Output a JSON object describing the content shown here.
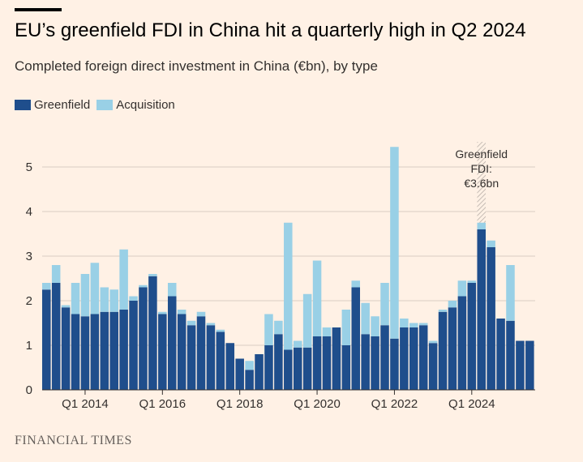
{
  "title": "EU’s greenfield FDI in China hit a quarterly high in Q2 2024",
  "subtitle": "Completed foreign direct investment in China (€bn), by type",
  "source": "FINANCIAL TIMES",
  "chart_data": {
    "type": "bar",
    "stacked": true,
    "grid": true,
    "legend_position": "top-left",
    "ylim": [
      0,
      5.6
    ],
    "yticks": [
      0,
      1,
      2,
      3,
      4,
      5
    ],
    "xtick_labels": [
      {
        "label": "Q1 2014",
        "index": 4
      },
      {
        "label": "Q1 2016",
        "index": 12
      },
      {
        "label": "Q1 2018",
        "index": 20
      },
      {
        "label": "Q1 2020",
        "index": 28
      },
      {
        "label": "Q1 2022",
        "index": 36
      },
      {
        "label": "Q1 2024",
        "index": 44
      }
    ],
    "categories": [
      "Q1 2013",
      "Q2 2013",
      "Q3 2013",
      "Q4 2013",
      "Q1 2014",
      "Q2 2014",
      "Q3 2014",
      "Q4 2014",
      "Q1 2015",
      "Q2 2015",
      "Q3 2015",
      "Q4 2015",
      "Q1 2016",
      "Q2 2016",
      "Q3 2016",
      "Q4 2016",
      "Q1 2017",
      "Q2 2017",
      "Q3 2017",
      "Q4 2017",
      "Q1 2018",
      "Q2 2018",
      "Q3 2018",
      "Q4 2018",
      "Q1 2019",
      "Q2 2019",
      "Q3 2019",
      "Q4 2019",
      "Q1 2020",
      "Q2 2020",
      "Q3 2020",
      "Q4 2020",
      "Q1 2021",
      "Q2 2021",
      "Q3 2021",
      "Q4 2021",
      "Q1 2022",
      "Q2 2022",
      "Q3 2022",
      "Q4 2022",
      "Q1 2023",
      "Q2 2023",
      "Q3 2023",
      "Q4 2023",
      "Q1 2024",
      "Q2 2024",
      "Q3 2024",
      "Q4 2024",
      "Q1 2025",
      "Q2 2025"
    ],
    "series": [
      {
        "name": "Greenfield",
        "color": "#1f4e8c",
        "values": [
          2.25,
          2.4,
          1.85,
          1.7,
          1.65,
          1.7,
          1.75,
          1.75,
          1.8,
          2.0,
          2.3,
          2.55,
          1.7,
          2.1,
          1.7,
          1.45,
          1.65,
          1.45,
          1.3,
          1.05,
          0.7,
          0.45,
          0.8,
          1.0,
          1.25,
          0.9,
          0.95,
          0.95,
          1.2,
          1.2,
          1.4,
          1.0,
          2.3,
          1.25,
          1.2,
          1.45,
          1.15,
          1.4,
          1.4,
          1.45,
          1.05,
          1.75,
          1.85,
          2.1,
          2.4,
          3.6,
          3.2,
          1.6,
          1.55,
          1.1
        ]
      },
      {
        "name": "Acquisition",
        "color": "#99d0e6",
        "values": [
          0.15,
          0.4,
          0.05,
          0.7,
          0.95,
          1.15,
          0.55,
          0.5,
          1.35,
          0.1,
          0.05,
          0.05,
          0.05,
          0.3,
          0.1,
          0.1,
          0.1,
          0.05,
          0.05,
          0.0,
          0.0,
          0.2,
          0.0,
          0.7,
          0.3,
          2.85,
          0.15,
          1.2,
          1.7,
          0.2,
          0.0,
          0.8,
          0.15,
          0.7,
          0.45,
          0.95,
          4.3,
          0.2,
          0.1,
          0.05,
          0.05,
          0.05,
          0.15,
          0.35,
          0.05,
          0.15,
          0.15,
          0.0,
          1.25,
          0.0
        ]
      }
    ],
    "extra": {
      "name": "Q3 2025",
      "greenfield": 1.1
    },
    "annotation": {
      "lines": [
        "Greenfield",
        "FDI:",
        "€3.6bn"
      ],
      "index": 45
    }
  }
}
